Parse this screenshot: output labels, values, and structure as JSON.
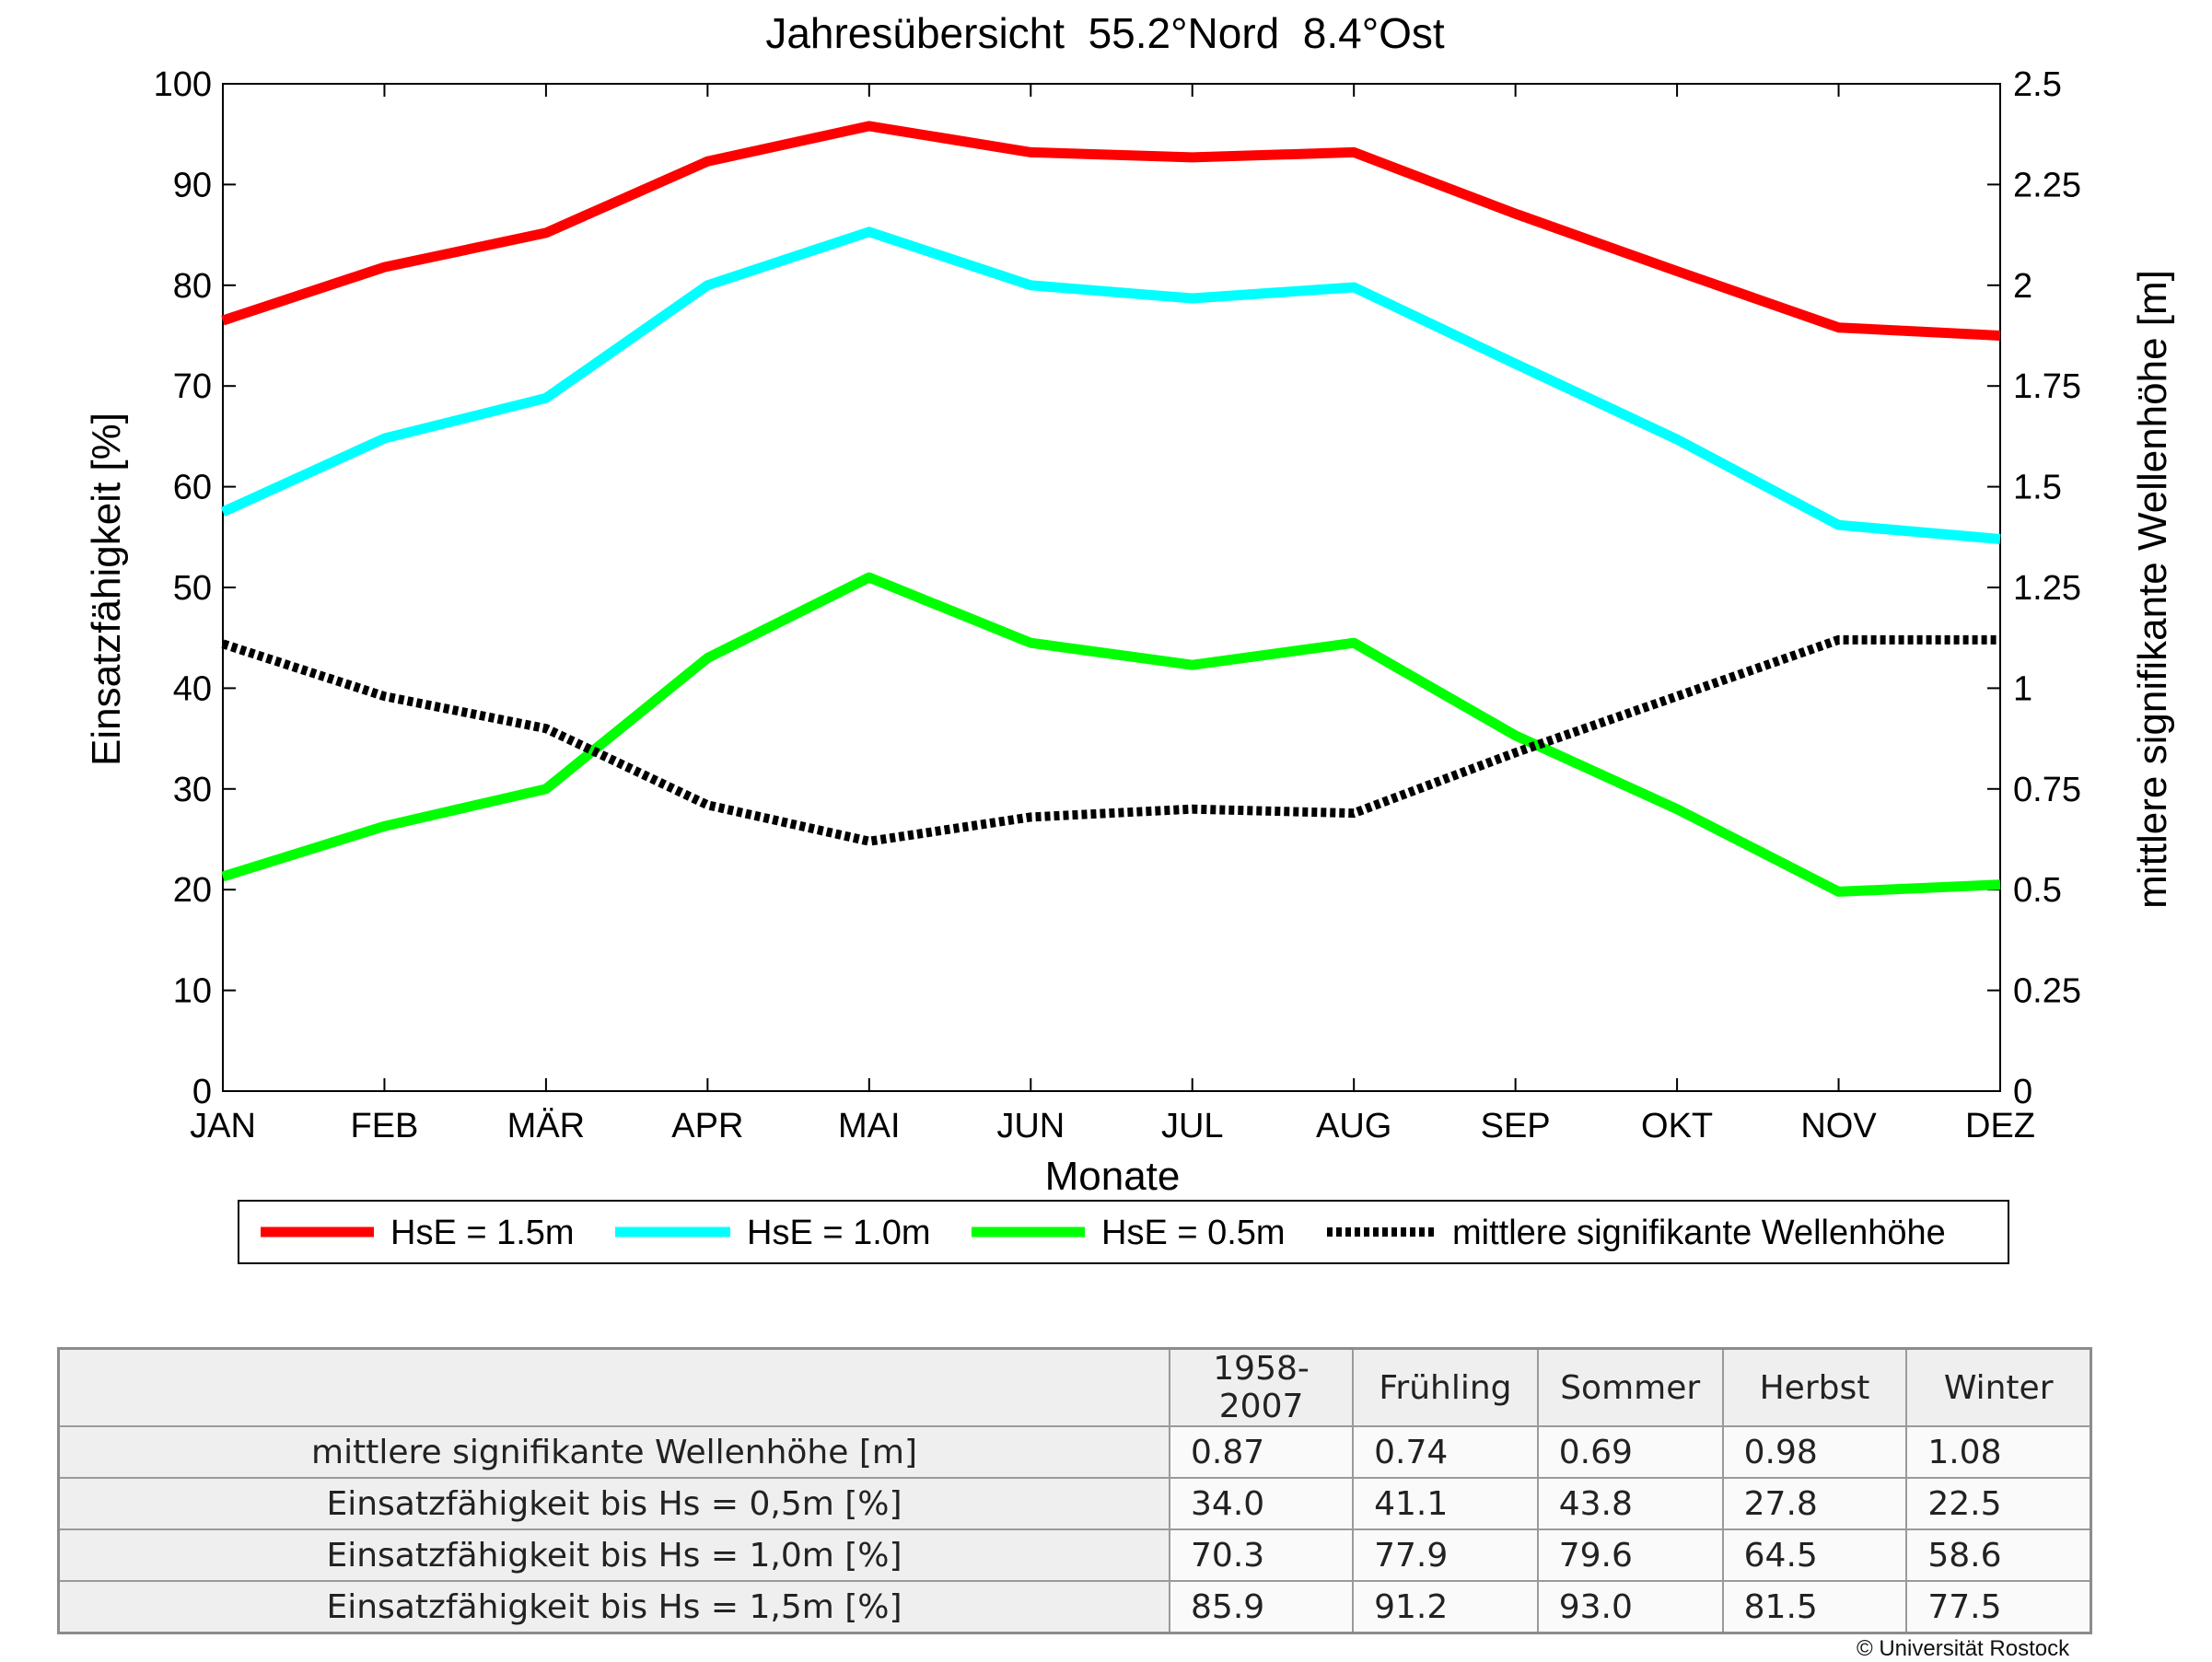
{
  "chart_data": {
    "type": "line",
    "title": "Jahresübersicht  55.2°Nord  8.4°Ost",
    "xlabel": "Monate",
    "ylabel": "Einsatzfähigkeit [%]",
    "ylabel_right": "mittlere signifikante Wellenhöhe [m]",
    "categories": [
      "JAN",
      "FEB",
      "MÄR",
      "APR",
      "MAI",
      "JUN",
      "JUL",
      "AUG",
      "SEP",
      "OKT",
      "NOV",
      "DEZ"
    ],
    "ylim": [
      0,
      100
    ],
    "ylim_right": [
      0,
      2.5
    ],
    "yticks": [
      "0",
      "10",
      "20",
      "30",
      "40",
      "50",
      "60",
      "70",
      "80",
      "90",
      "100"
    ],
    "yticks_right": [
      "0",
      "0.25",
      "0.5",
      "0.75",
      "1",
      "1.25",
      "1.5",
      "1.75",
      "2",
      "2.25",
      "2.5"
    ],
    "grid": false,
    "legend_position": "bottom",
    "series": [
      {
        "name": "HsE = 1.5m",
        "axis": "left",
        "color": "#ff0000",
        "style": "solid",
        "values": [
          76.5,
          81.8,
          85.2,
          92.3,
          95.8,
          93.2,
          92.7,
          93.2,
          87.1,
          81.4,
          75.8,
          75.0
        ]
      },
      {
        "name": "HsE = 1.0m",
        "axis": "left",
        "color": "#00ffff",
        "style": "solid",
        "values": [
          57.5,
          64.8,
          68.8,
          80.0,
          85.3,
          80.0,
          78.7,
          79.8,
          72.2,
          64.7,
          56.2,
          54.8
        ]
      },
      {
        "name": "HsE = 0.5m",
        "axis": "left",
        "color": "#00ff00",
        "style": "solid",
        "values": [
          21.3,
          26.3,
          30.0,
          43.0,
          51.0,
          44.5,
          42.3,
          44.5,
          35.3,
          28.0,
          19.8,
          20.5
        ]
      },
      {
        "name": "mittlere signifikante Wellenhöhe",
        "axis": "right",
        "color": "#000000",
        "style": "dotted",
        "values": [
          1.11,
          0.98,
          0.9,
          0.71,
          0.62,
          0.68,
          0.7,
          0.69,
          0.84,
          0.98,
          1.12,
          1.12
        ]
      }
    ]
  },
  "table": {
    "header": [
      "1958-2007",
      "Frühling",
      "Sommer",
      "Herbst",
      "Winter"
    ],
    "rows": [
      {
        "label": "mittlere signifikante Wellenhöhe [m]",
        "values": [
          "0.87",
          "0.74",
          "0.69",
          "0.98",
          "1.08"
        ]
      },
      {
        "label": "Einsatzfähigkeit bis Hs = 0,5m [%]",
        "values": [
          "34.0",
          "41.1",
          "43.8",
          "27.8",
          "22.5"
        ]
      },
      {
        "label": "Einsatzfähigkeit bis Hs = 1,0m [%]",
        "values": [
          "70.3",
          "77.9",
          "79.6",
          "64.5",
          "58.6"
        ]
      },
      {
        "label": "Einsatzfähigkeit bis Hs = 1,5m [%]",
        "values": [
          "85.9",
          "91.2",
          "93.0",
          "81.5",
          "77.5"
        ]
      }
    ]
  },
  "copyright": "© Universität Rostock"
}
